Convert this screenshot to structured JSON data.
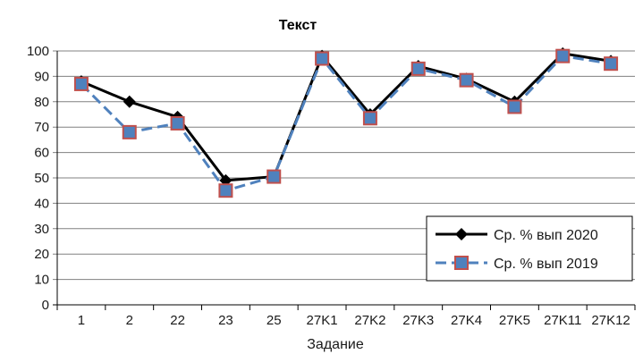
{
  "chart_data": {
    "type": "line",
    "title": "Текст",
    "xlabel": "Задание",
    "ylabel": "",
    "ylim": [
      0,
      100
    ],
    "yticks": [
      "0",
      "10",
      "20",
      "30",
      "40",
      "50",
      "60",
      "70",
      "80",
      "90",
      "100"
    ],
    "categories": [
      "1",
      "2",
      "22",
      "23",
      "25",
      "27K1",
      "27K2",
      "27K3",
      "27K4",
      "27K5",
      "27K11",
      "27K12"
    ],
    "grid": true,
    "legend_position": "bottom-right",
    "series": [
      {
        "name": "Ср. % вып 2020",
        "values": [
          88,
          80,
          74,
          49,
          50.5,
          98,
          75,
          94,
          89,
          80,
          99,
          96
        ],
        "color": "#000000",
        "marker": "diamond",
        "line": "solid"
      },
      {
        "name": "Ср. % вып 2019",
        "values": [
          87,
          68,
          71.5,
          45,
          50.5,
          97,
          73.5,
          93,
          88.5,
          78,
          98,
          95
        ],
        "color": "#4f81bd",
        "marker_fill": "#4f81bd",
        "marker_edge": "#c0504d",
        "marker": "square",
        "line": "dashed"
      }
    ]
  }
}
